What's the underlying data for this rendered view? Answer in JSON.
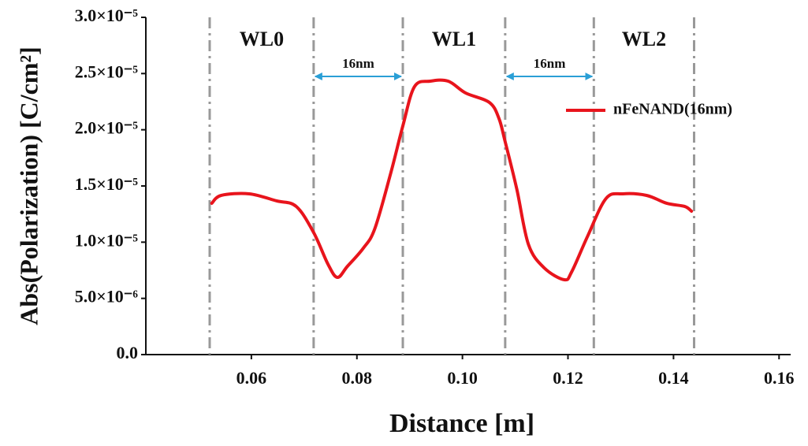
{
  "chart_data": {
    "type": "line",
    "x_label": "Distance [m]",
    "y_label": "Abs(Polarization) [C/cm²]",
    "x": [
      0.0525,
      0.0543,
      0.0596,
      0.0648,
      0.0685,
      0.0718,
      0.0745,
      0.0763,
      0.0782,
      0.0812,
      0.0834,
      0.0864,
      0.0887,
      0.0909,
      0.0939,
      0.0973,
      0.1006,
      0.1051,
      0.1069,
      0.1081,
      0.1103,
      0.1125,
      0.1155,
      0.1193,
      0.1207,
      0.1237,
      0.1272,
      0.1304,
      0.1349,
      0.1387,
      0.1421,
      0.1434
    ],
    "series": [
      {
        "name": "nFeNAND(16nm)",
        "color": "#e8141c",
        "values": [
          1.346e-05,
          1.416e-05,
          1.43e-05,
          1.367e-05,
          1.318e-05,
          1.086e-05,
          8.06e-06,
          6.87e-06,
          7.85e-06,
          9.46e-06,
          1.121e-05,
          1.612e-05,
          2.033e-05,
          2.383e-05,
          2.432e-05,
          2.432e-05,
          2.327e-05,
          2.243e-05,
          2.103e-05,
          1.893e-05,
          1.472e-05,
          9.81e-06,
          7.71e-06,
          6.66e-06,
          7.36e-06,
          1.051e-05,
          1.388e-05,
          1.43e-05,
          1.416e-05,
          1.346e-05,
          1.318e-05,
          1.276e-05
        ]
      }
    ],
    "xlim": [
      0.04,
      0.1622
    ],
    "ylim": [
      0,
      3e-05
    ],
    "xticks": [
      0.06,
      0.08,
      {
        "value": 0.1,
        "label": "0.10"
      },
      0.12,
      0.14,
      0.16
    ],
    "yticks": [
      {
        "value": 0,
        "label": "0.0"
      },
      {
        "value": 5e-06,
        "label": "5.0×10⁻⁶"
      },
      {
        "value": 1e-05,
        "label": "1.0×10⁻⁵"
      },
      {
        "value": 1.5e-05,
        "label": "1.5×10⁻⁵"
      },
      {
        "value": 2e-05,
        "label": "2.0×10⁻⁵"
      },
      {
        "value": 2.5e-05,
        "label": "2.5×10⁻⁵"
      },
      {
        "value": 3e-05,
        "label": "3.0×10⁻⁵"
      }
    ],
    "vlines": [
      0.0521,
      0.0718,
      0.0887,
      0.1081,
      0.1249,
      0.1439
    ],
    "region_labels": [
      "WL0",
      "WL1",
      "WL2"
    ],
    "gap_labels": [
      "16nm",
      "16nm"
    ],
    "legend": "upper right",
    "grid": false
  }
}
